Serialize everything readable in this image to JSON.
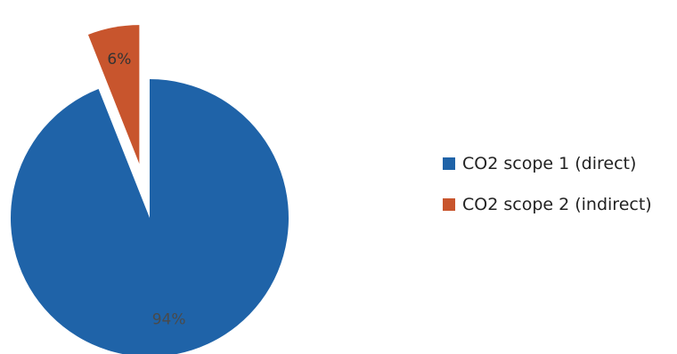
{
  "chart_data": {
    "type": "pie",
    "categories": [
      "CO2 scope 1 (direct)",
      "CO2 scope 2 (indirect)"
    ],
    "values": [
      94,
      6
    ],
    "data_labels": [
      "94%",
      "6%"
    ],
    "colors": [
      "#1f63a8",
      "#c8552d"
    ],
    "exploded": [
      false,
      true
    ],
    "legend_position": "right"
  }
}
